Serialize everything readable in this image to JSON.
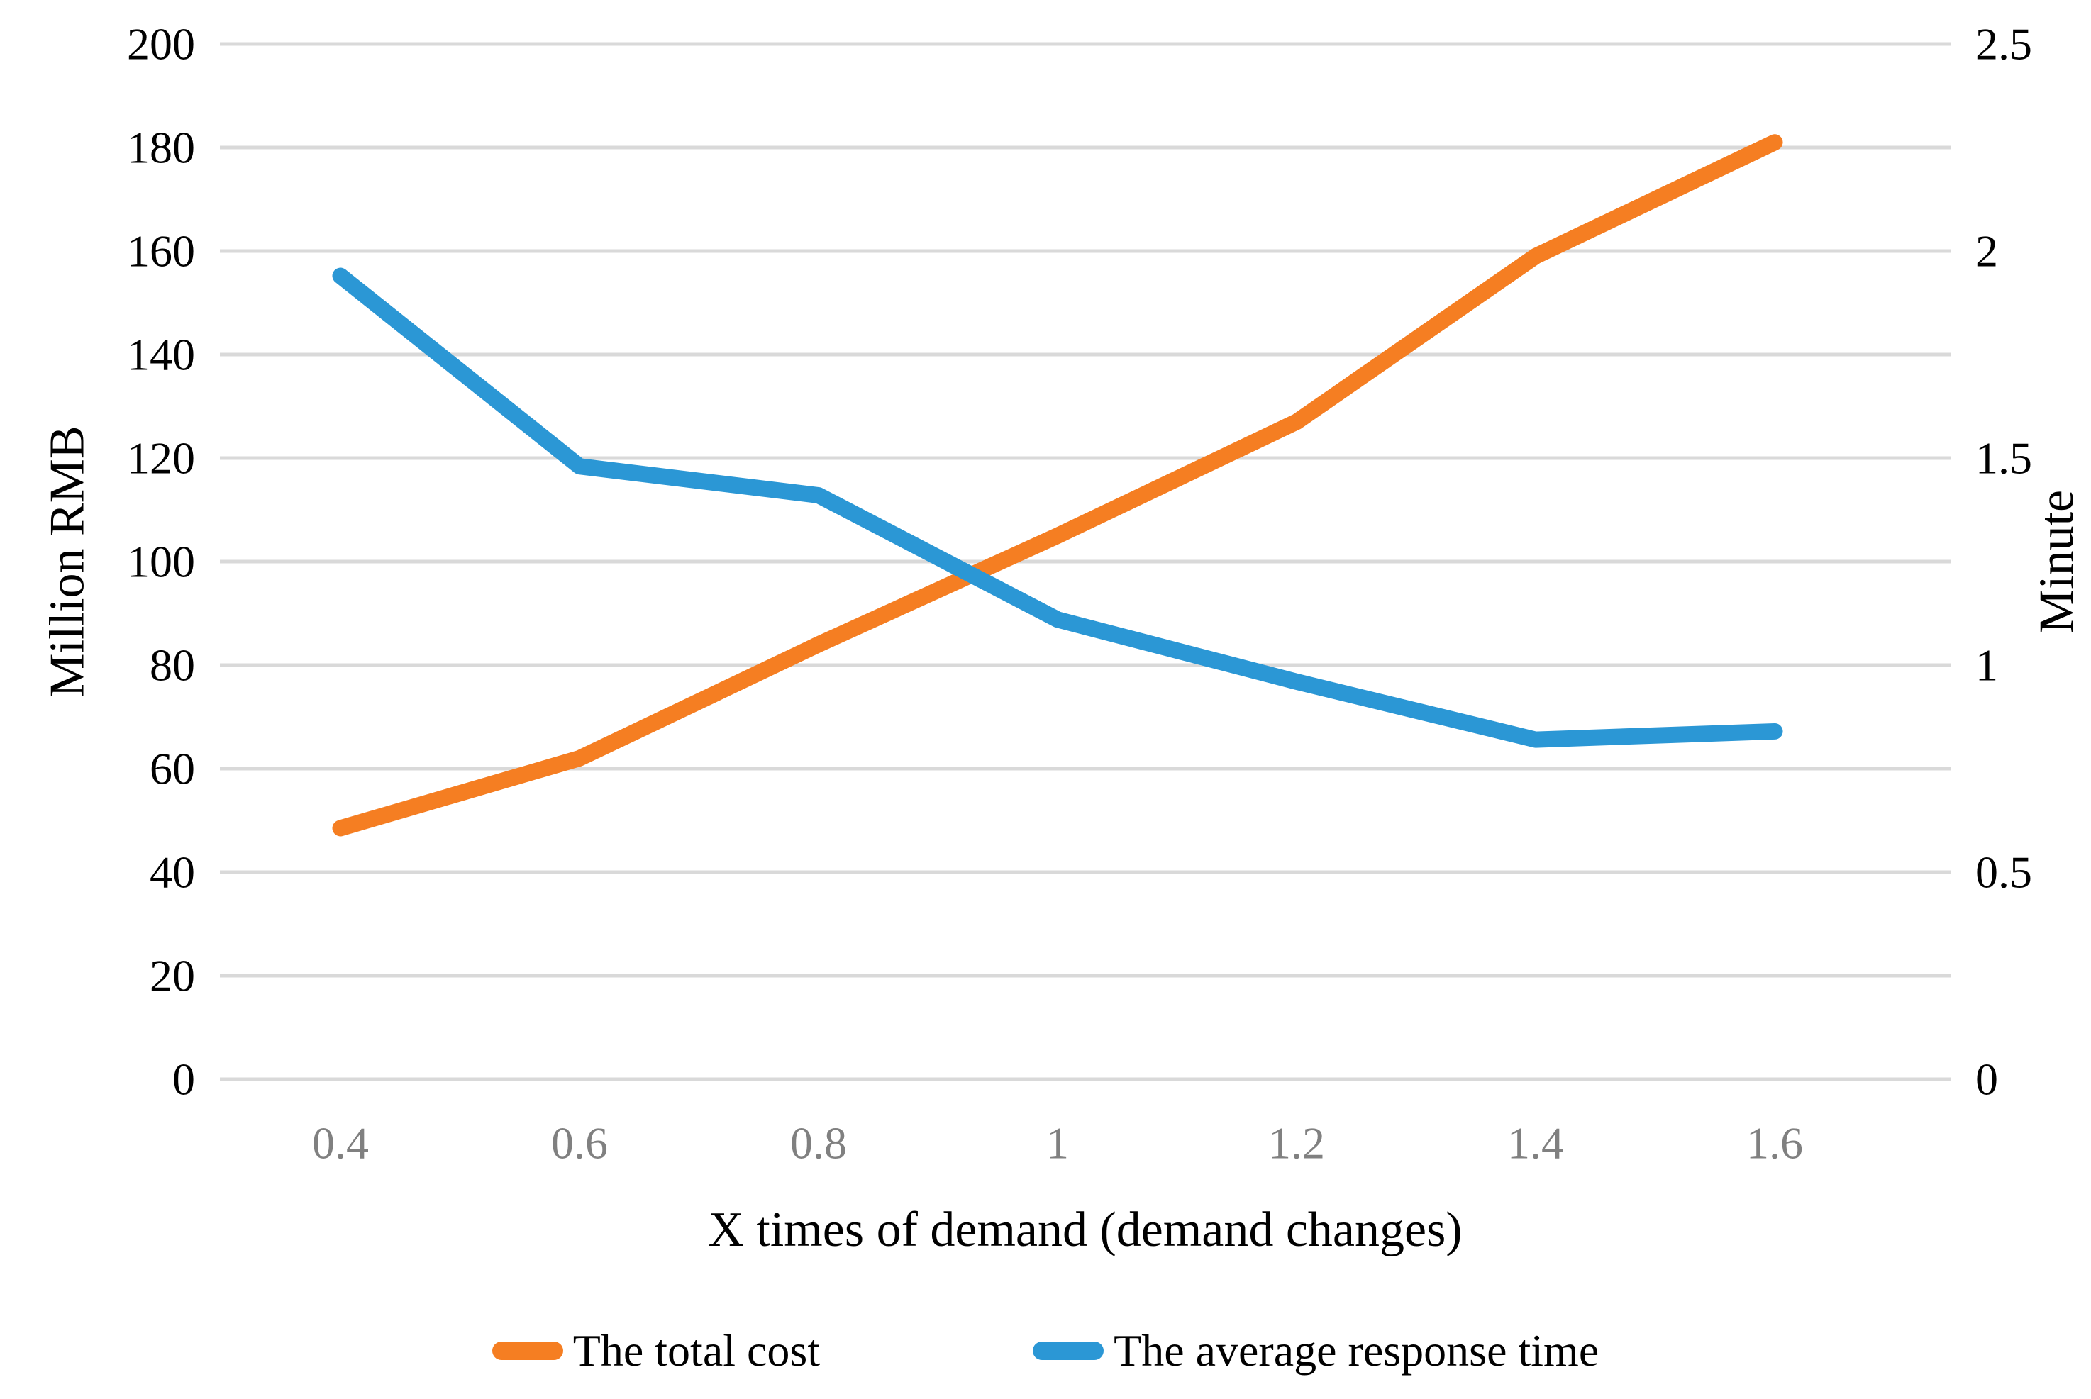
{
  "chart_data": {
    "type": "line",
    "title": "",
    "x_categories": [
      "0.4",
      "0.6",
      "0.8",
      "1",
      "1.2",
      "1.4",
      "1.6"
    ],
    "x_values": [
      0.4,
      0.6,
      0.8,
      1.0,
      1.2,
      1.4,
      1.6
    ],
    "series": [
      {
        "name": "The total cost",
        "axis": "left",
        "unit": "Million RMB",
        "color": "#F57E22",
        "values": [
          48.5,
          62,
          84,
          105,
          127,
          159,
          181
        ]
      },
      {
        "name": "The average response time",
        "axis": "right",
        "unit": "Minute",
        "color": "#2B97D5",
        "values": [
          1.94,
          1.48,
          1.41,
          1.11,
          0.96,
          0.82,
          0.84
        ]
      }
    ],
    "left_axis": {
      "title": "Million RMB",
      "min": 0,
      "max": 200,
      "step": 20,
      "tick_labels": [
        "0",
        "20",
        "40",
        "60",
        "80",
        "100",
        "120",
        "140",
        "160",
        "180",
        "200"
      ]
    },
    "right_axis": {
      "title": "Minute",
      "min": 0,
      "max": 2.5,
      "step": 0.5,
      "tick_labels": [
        "0",
        "0.5",
        "1",
        "1.5",
        "2",
        "2.5"
      ]
    },
    "x_axis": {
      "title": "X times of demand (demand changes)"
    },
    "grid": true,
    "legend_position": "bottom",
    "colors": {
      "gridline": "#D9D9D9",
      "x_tick_label": "#808080",
      "y_tick_label": "#000000",
      "axis_title": "#000000"
    }
  },
  "legend": {
    "items": [
      {
        "label": "The total cost",
        "color": "#F57E22"
      },
      {
        "label": "The average response time",
        "color": "#2B97D5"
      }
    ]
  }
}
